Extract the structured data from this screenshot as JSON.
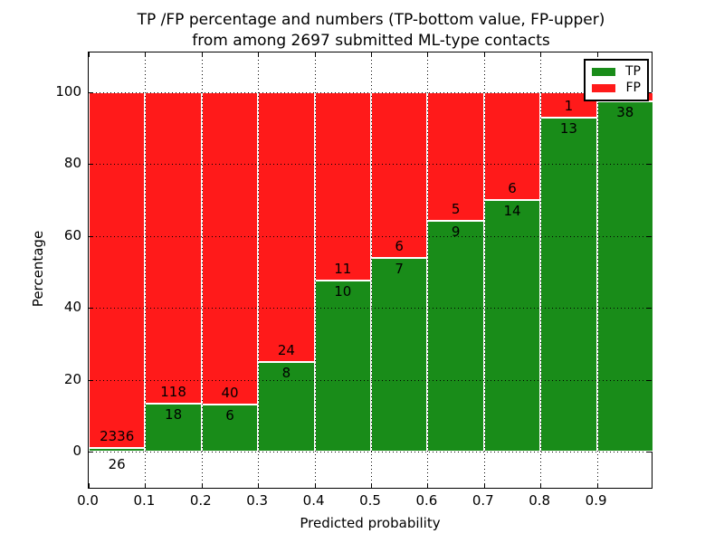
{
  "chart_data": {
    "type": "bar",
    "subtype": "stacked-100-percent",
    "title_line1": "TP /FP percentage and numbers (TP-bottom value, FP-upper)",
    "title_line2": "from among 2697 submitted ML-type contacts",
    "total_contacts": 2697,
    "xlabel": "Predicted probability",
    "ylabel": "Percentage",
    "x_tick_labels": [
      "0.0",
      "0.1",
      "0.2",
      "0.3",
      "0.4",
      "0.5",
      "0.6",
      "0.7",
      "0.8",
      "0.9"
    ],
    "y_ticks": [
      0,
      20,
      40,
      60,
      80,
      100
    ],
    "grid": "dotted, on for both axes",
    "legend_position": "upper right",
    "categories": [
      "0.0-0.1",
      "0.1-0.2",
      "0.2-0.3",
      "0.3-0.4",
      "0.4-0.5",
      "0.5-0.6",
      "0.6-0.7",
      "0.7-0.8",
      "0.8-0.9",
      "0.9-1.0"
    ],
    "series": [
      {
        "name": "TP",
        "color": "#198c19",
        "counts": [
          26,
          18,
          6,
          8,
          10,
          7,
          9,
          14,
          13,
          38
        ]
      },
      {
        "name": "FP",
        "color": "#ff1a1a",
        "counts": [
          2336,
          118,
          40,
          24,
          11,
          6,
          5,
          6,
          1,
          1
        ]
      }
    ],
    "tp_percent_of_bin": [
      1.1,
      13.2,
      13.0,
      25.0,
      47.6,
      53.8,
      64.3,
      70.0,
      92.9,
      97.4
    ],
    "legend": {
      "entries": [
        {
          "label": "TP",
          "color": "#198c19"
        },
        {
          "label": "FP",
          "color": "#ff1a1a"
        }
      ]
    }
  },
  "colors": {
    "tp_green": "#198c19",
    "fp_red": "#ff1a1a",
    "bar_edge": "#ffffff",
    "grid_and_text": "#000000",
    "background": "#ffffff"
  }
}
